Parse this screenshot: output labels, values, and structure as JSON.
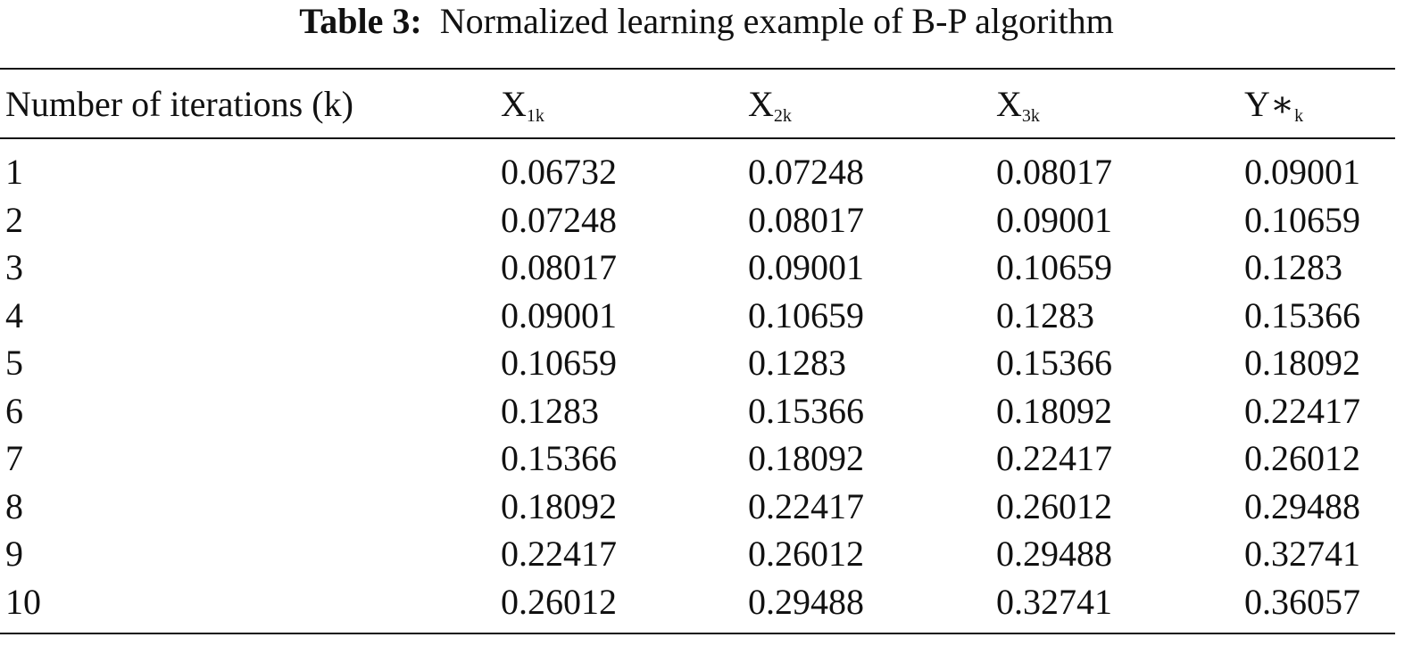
{
  "caption": {
    "label": "Table 3:",
    "text": "Normalized learning example of B-P algorithm"
  },
  "table": {
    "headers": [
      {
        "main": "Number of iterations (k)",
        "sub": ""
      },
      {
        "main": "X",
        "sub": "1k"
      },
      {
        "main": "X",
        "sub": "2k"
      },
      {
        "main": "X",
        "sub": "3k"
      },
      {
        "main": "Y∗",
        "sub": "k"
      }
    ],
    "rows": [
      [
        "1",
        "0.06732",
        "0.07248",
        "0.08017",
        "0.09001"
      ],
      [
        "2",
        "0.07248",
        "0.08017",
        "0.09001",
        "0.10659"
      ],
      [
        "3",
        "0.08017",
        "0.09001",
        "0.10659",
        "0.1283"
      ],
      [
        "4",
        "0.09001",
        "0.10659",
        "0.1283",
        "0.15366"
      ],
      [
        "5",
        "0.10659",
        "0.1283",
        "0.15366",
        "0.18092"
      ],
      [
        "6",
        "0.1283",
        "0.15366",
        "0.18092",
        "0.22417"
      ],
      [
        "7",
        "0.15366",
        "0.18092",
        "0.22417",
        "0.26012"
      ],
      [
        "8",
        "0.18092",
        "0.22417",
        "0.26012",
        "0.29488"
      ],
      [
        "9",
        "0.22417",
        "0.26012",
        "0.29488",
        "0.32741"
      ],
      [
        "10",
        "0.26012",
        "0.29488",
        "0.32741",
        "0.36057"
      ]
    ]
  }
}
